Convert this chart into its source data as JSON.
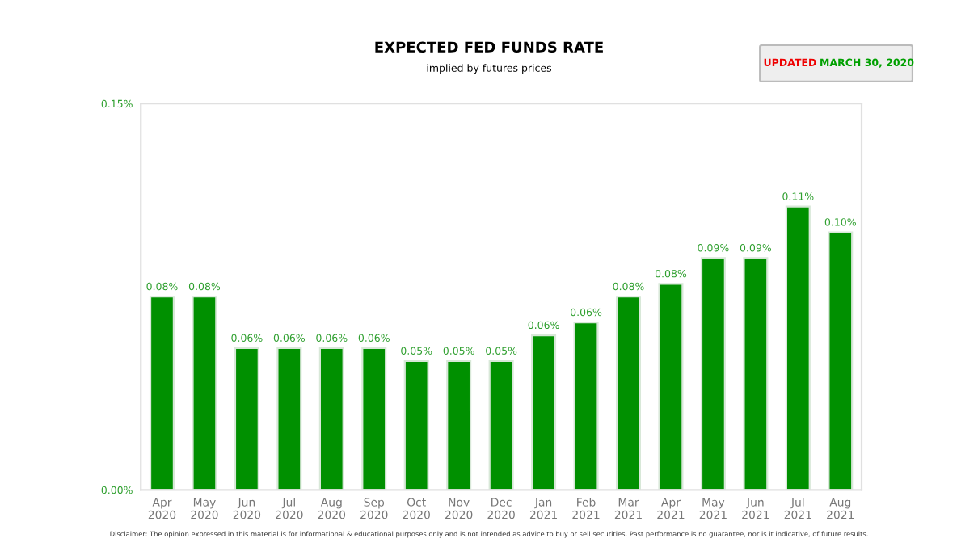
{
  "chart_data": {
    "type": "bar",
    "title": "EXPECTED FED FUNDS RATE",
    "subtitle": "implied by futures prices",
    "categories": [
      "Apr\n2020",
      "May\n2020",
      "Jun\n2020",
      "Jul\n2020",
      "Aug\n2020",
      "Sep\n2020",
      "Oct\n2020",
      "Nov\n2020",
      "Dec\n2020",
      "Jan\n2021",
      "Feb\n2021",
      "Mar\n2021",
      "Apr\n2021",
      "May\n2021",
      "Jun\n2021",
      "Jul\n2021",
      "Aug\n2021"
    ],
    "values": [
      0.075,
      0.075,
      0.055,
      0.055,
      0.055,
      0.055,
      0.05,
      0.05,
      0.05,
      0.06,
      0.065,
      0.075,
      0.08,
      0.09,
      0.09,
      0.11,
      0.1
    ],
    "value_labels": [
      "0.08%",
      "0.08%",
      "0.06%",
      "0.06%",
      "0.06%",
      "0.06%",
      "0.05%",
      "0.05%",
      "0.05%",
      "0.06%",
      "0.06%",
      "0.08%",
      "0.08%",
      "0.09%",
      "0.09%",
      "0.11%",
      "0.10%"
    ],
    "color": "#009000",
    "ylim": [
      0,
      0.15
    ],
    "yticks": [
      {
        "value": 0,
        "label": "0.00%"
      },
      {
        "value": 0.15,
        "label": "0.15%"
      }
    ],
    "grid": false,
    "legend": false,
    "annotations": [
      "UPDATED",
      "MARCH 30, 2020",
      "Disclaimer: The opinion expressed in this material is for informational & educational purposes only and is not intended as advice to buy or sell securities. Past performance is no guarantee, nor is it indicative, of future results."
    ]
  }
}
